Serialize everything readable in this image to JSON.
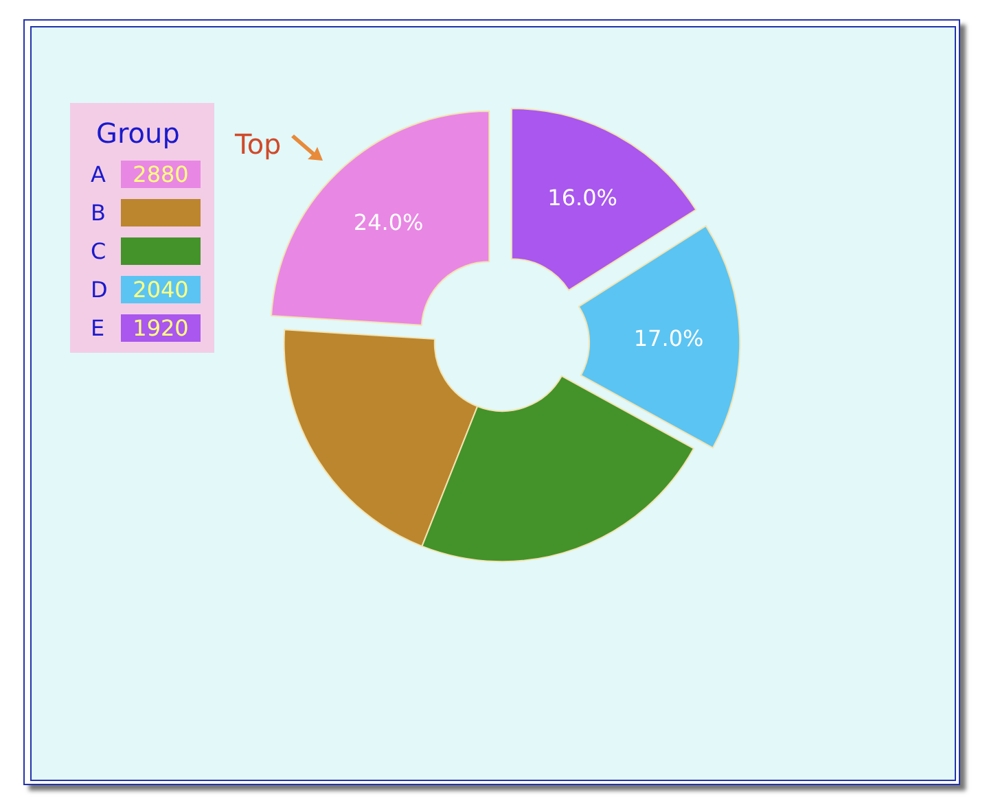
{
  "chart_data": {
    "type": "donut",
    "legend_title": "Group",
    "legend": "top left",
    "categories": [
      "A",
      "B",
      "C",
      "D",
      "E"
    ],
    "values": [
      24,
      20,
      23,
      17,
      16
    ],
    "colors": [
      "#e887e4",
      "#bb862e",
      "#43932a",
      "#5bc4f2",
      "#a957ee"
    ],
    "value_labels": [
      "24.0%",
      null,
      null,
      "17.0%",
      "16.0%"
    ],
    "annotations": [
      "Top",
      "2880",
      "2040",
      "1920"
    ]
  }
}
